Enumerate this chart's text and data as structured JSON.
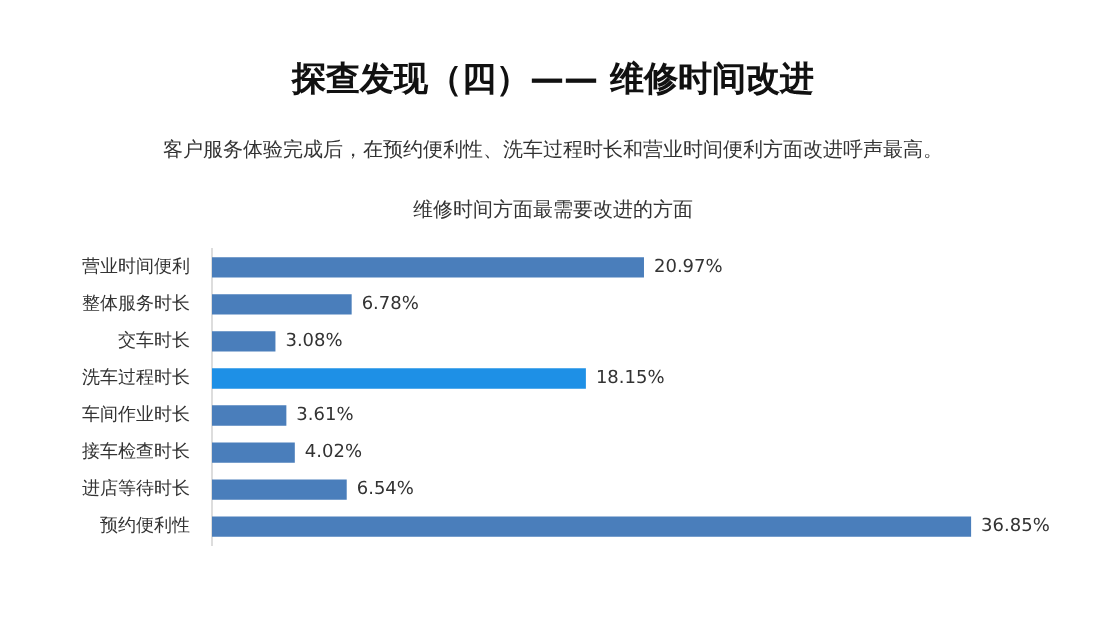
{
  "chart_data": {
    "type": "bar",
    "orientation": "horizontal",
    "title": "维修时间方面最需要改进的方面",
    "annotations": [
      "探查发现（四）—— 维修时间改进",
      "客户服务体验完成后，在预约便利性、洗车过程时长和营业时间便利方面改进呼声最高。"
    ],
    "categories": [
      "营业时间便利",
      "整体服务时长",
      "交车时长",
      "洗车过程时长",
      "车间作业时长",
      "接车检查时长",
      "进店等待时长",
      "预约便利性"
    ],
    "values": [
      20.97,
      6.78,
      3.08,
      18.15,
      3.61,
      4.02,
      6.54,
      36.85
    ],
    "value_labels": [
      "20.97%",
      "6.78%",
      "3.08%",
      "18.15%",
      "3.61%",
      "4.02%",
      "6.54%",
      "36.85%"
    ],
    "colors": [
      "#4a7ebb",
      "#4a7ebb",
      "#4a7ebb",
      "#1e90e6",
      "#4a7ebb",
      "#4a7ebb",
      "#4a7ebb",
      "#4a7ebb"
    ],
    "grid": false,
    "legend": false,
    "tick_labels": "y"
  }
}
